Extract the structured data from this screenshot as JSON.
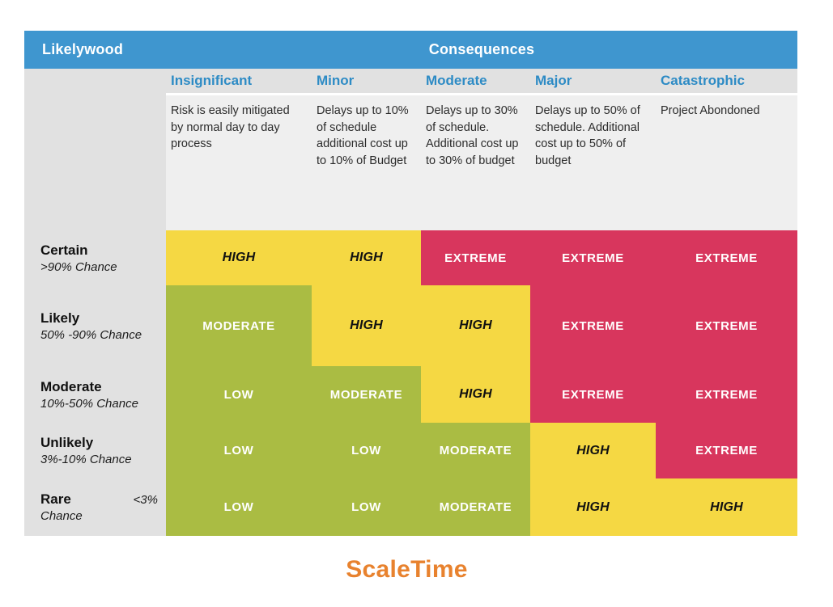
{
  "header": {
    "likelihood_label": "Likelywood",
    "consequences_label": "Consequences"
  },
  "columns": [
    {
      "name": "Insignificant",
      "description": "Risk is easily mitigated by normal day to day process"
    },
    {
      "name": "Minor",
      "description": "Delays up to 10% of schedule additional cost up to 10% of Budget"
    },
    {
      "name": "Moderate",
      "description": "Delays up to 30% of schedule. Additional cost up to 30% of budget"
    },
    {
      "name": "Major",
      "description": "Delays up to 50% of schedule. Additional cost up to 50% of budget"
    },
    {
      "name": "Catastrophic",
      "description": "Project Abondoned"
    }
  ],
  "rows": [
    {
      "name": "Certain",
      "range": ">90% Chance"
    },
    {
      "name": "Likely",
      "range": "50% -90% Chance"
    },
    {
      "name": "Moderate",
      "range": "10%-50% Chance"
    },
    {
      "name": "Unlikely",
      "range": "3%-10% Chance"
    },
    {
      "name": "Rare",
      "range_inline": "<3%",
      "range": "Chance"
    }
  ],
  "matrix": [
    [
      "HIGH",
      "HIGH",
      "EXTREME",
      "EXTREME",
      "EXTREME"
    ],
    [
      "MODERATE",
      "HIGH",
      "HIGH",
      "EXTREME",
      "EXTREME"
    ],
    [
      "LOW",
      "MODERATE",
      "HIGH",
      "EXTREME",
      "EXTREME"
    ],
    [
      "LOW",
      "LOW",
      "MODERATE",
      "HIGH",
      "EXTREME"
    ],
    [
      "LOW",
      "LOW",
      "MODERATE",
      "HIGH",
      "HIGH"
    ]
  ],
  "levels": {
    "LOW": {
      "bg": "#AABC43",
      "text": "#FFFFFF"
    },
    "MODERATE": {
      "bg": "#AABC43",
      "text": "#FFFFFF"
    },
    "HIGH": {
      "bg": "#F5D843",
      "text": "#111111",
      "emphasis": true
    },
    "EXTREME": {
      "bg": "#D8365D",
      "text": "#FFFFFF"
    }
  },
  "theme": {
    "header_blue": "#3F96CF",
    "header_text": "#FFFFFF",
    "column_header_text": "#2D8BC5",
    "label_column_bg": "#E1E1E1",
    "description_bg": "#EFEFEF"
  },
  "footer": {
    "brand": "ScaleTime",
    "brand_color": "#E8822E"
  },
  "chart_data": {
    "type": "heatmap",
    "title": "Risk assessment matrix: Likelywood vs Consequences",
    "x_categories": [
      "Insignificant",
      "Minor",
      "Moderate",
      "Major",
      "Catastrophic"
    ],
    "x_descriptions": [
      "Risk is easily mitigated by normal day to day process",
      "Delays up to 10% of schedule additional cost up to 10% of Budget",
      "Delays up to 30% of schedule. Additional cost up to 30% of budget",
      "Delays up to 50% of schedule. Additional cost up to 50% of budget",
      "Project Abondoned"
    ],
    "y_categories": [
      "Certain (>90% Chance)",
      "Likely (50% -90% Chance)",
      "Moderate (10%-50% Chance)",
      "Unlikely (3%-10% Chance)",
      "Rare (<3% Chance)"
    ],
    "values": [
      [
        "HIGH",
        "HIGH",
        "EXTREME",
        "EXTREME",
        "EXTREME"
      ],
      [
        "MODERATE",
        "HIGH",
        "HIGH",
        "EXTREME",
        "EXTREME"
      ],
      [
        "LOW",
        "MODERATE",
        "HIGH",
        "EXTREME",
        "EXTREME"
      ],
      [
        "LOW",
        "LOW",
        "MODERATE",
        "HIGH",
        "EXTREME"
      ],
      [
        "LOW",
        "LOW",
        "MODERATE",
        "HIGH",
        "HIGH"
      ]
    ],
    "color_scale": {
      "LOW": "#AABC43",
      "MODERATE": "#AABC43",
      "HIGH": "#F5D843",
      "EXTREME": "#D8365D"
    },
    "legend_position": "none",
    "grid": false
  }
}
